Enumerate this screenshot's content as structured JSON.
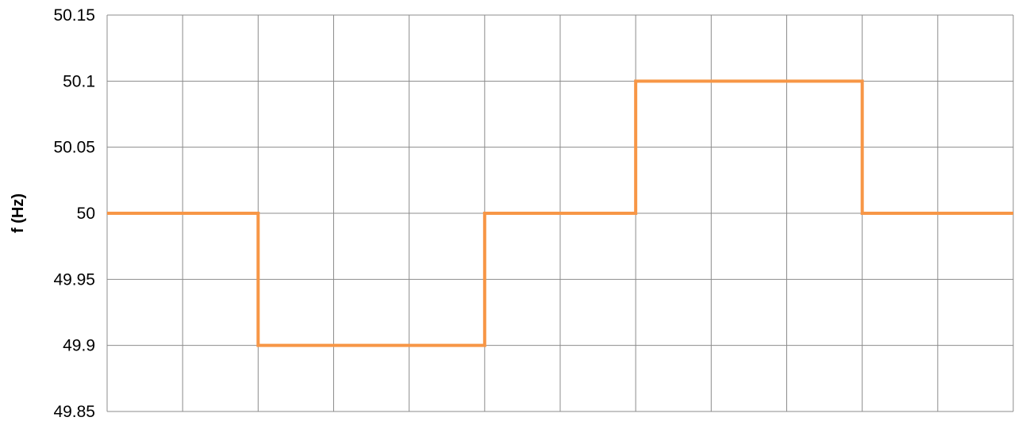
{
  "chart_data": {
    "type": "line",
    "step": true,
    "title": "",
    "xlabel": "",
    "ylabel": "f (Hz)",
    "ylim": [
      49.85,
      50.15
    ],
    "yticks": [
      50.15,
      50.1,
      50.05,
      50,
      49.95,
      49.9,
      49.85
    ],
    "ytick_labels": [
      "50.15",
      "50.1",
      "50.05",
      "50",
      "49.95",
      "49.9",
      "49.85"
    ],
    "x_intervals": 12,
    "grid": true,
    "series": [
      {
        "color": "#f79646",
        "x": [
          0,
          2,
          2,
          5,
          5,
          7,
          7,
          10,
          10,
          12
        ],
        "values": [
          50,
          50,
          49.9,
          49.9,
          50,
          50,
          50.1,
          50.1,
          50,
          50
        ]
      }
    ]
  }
}
